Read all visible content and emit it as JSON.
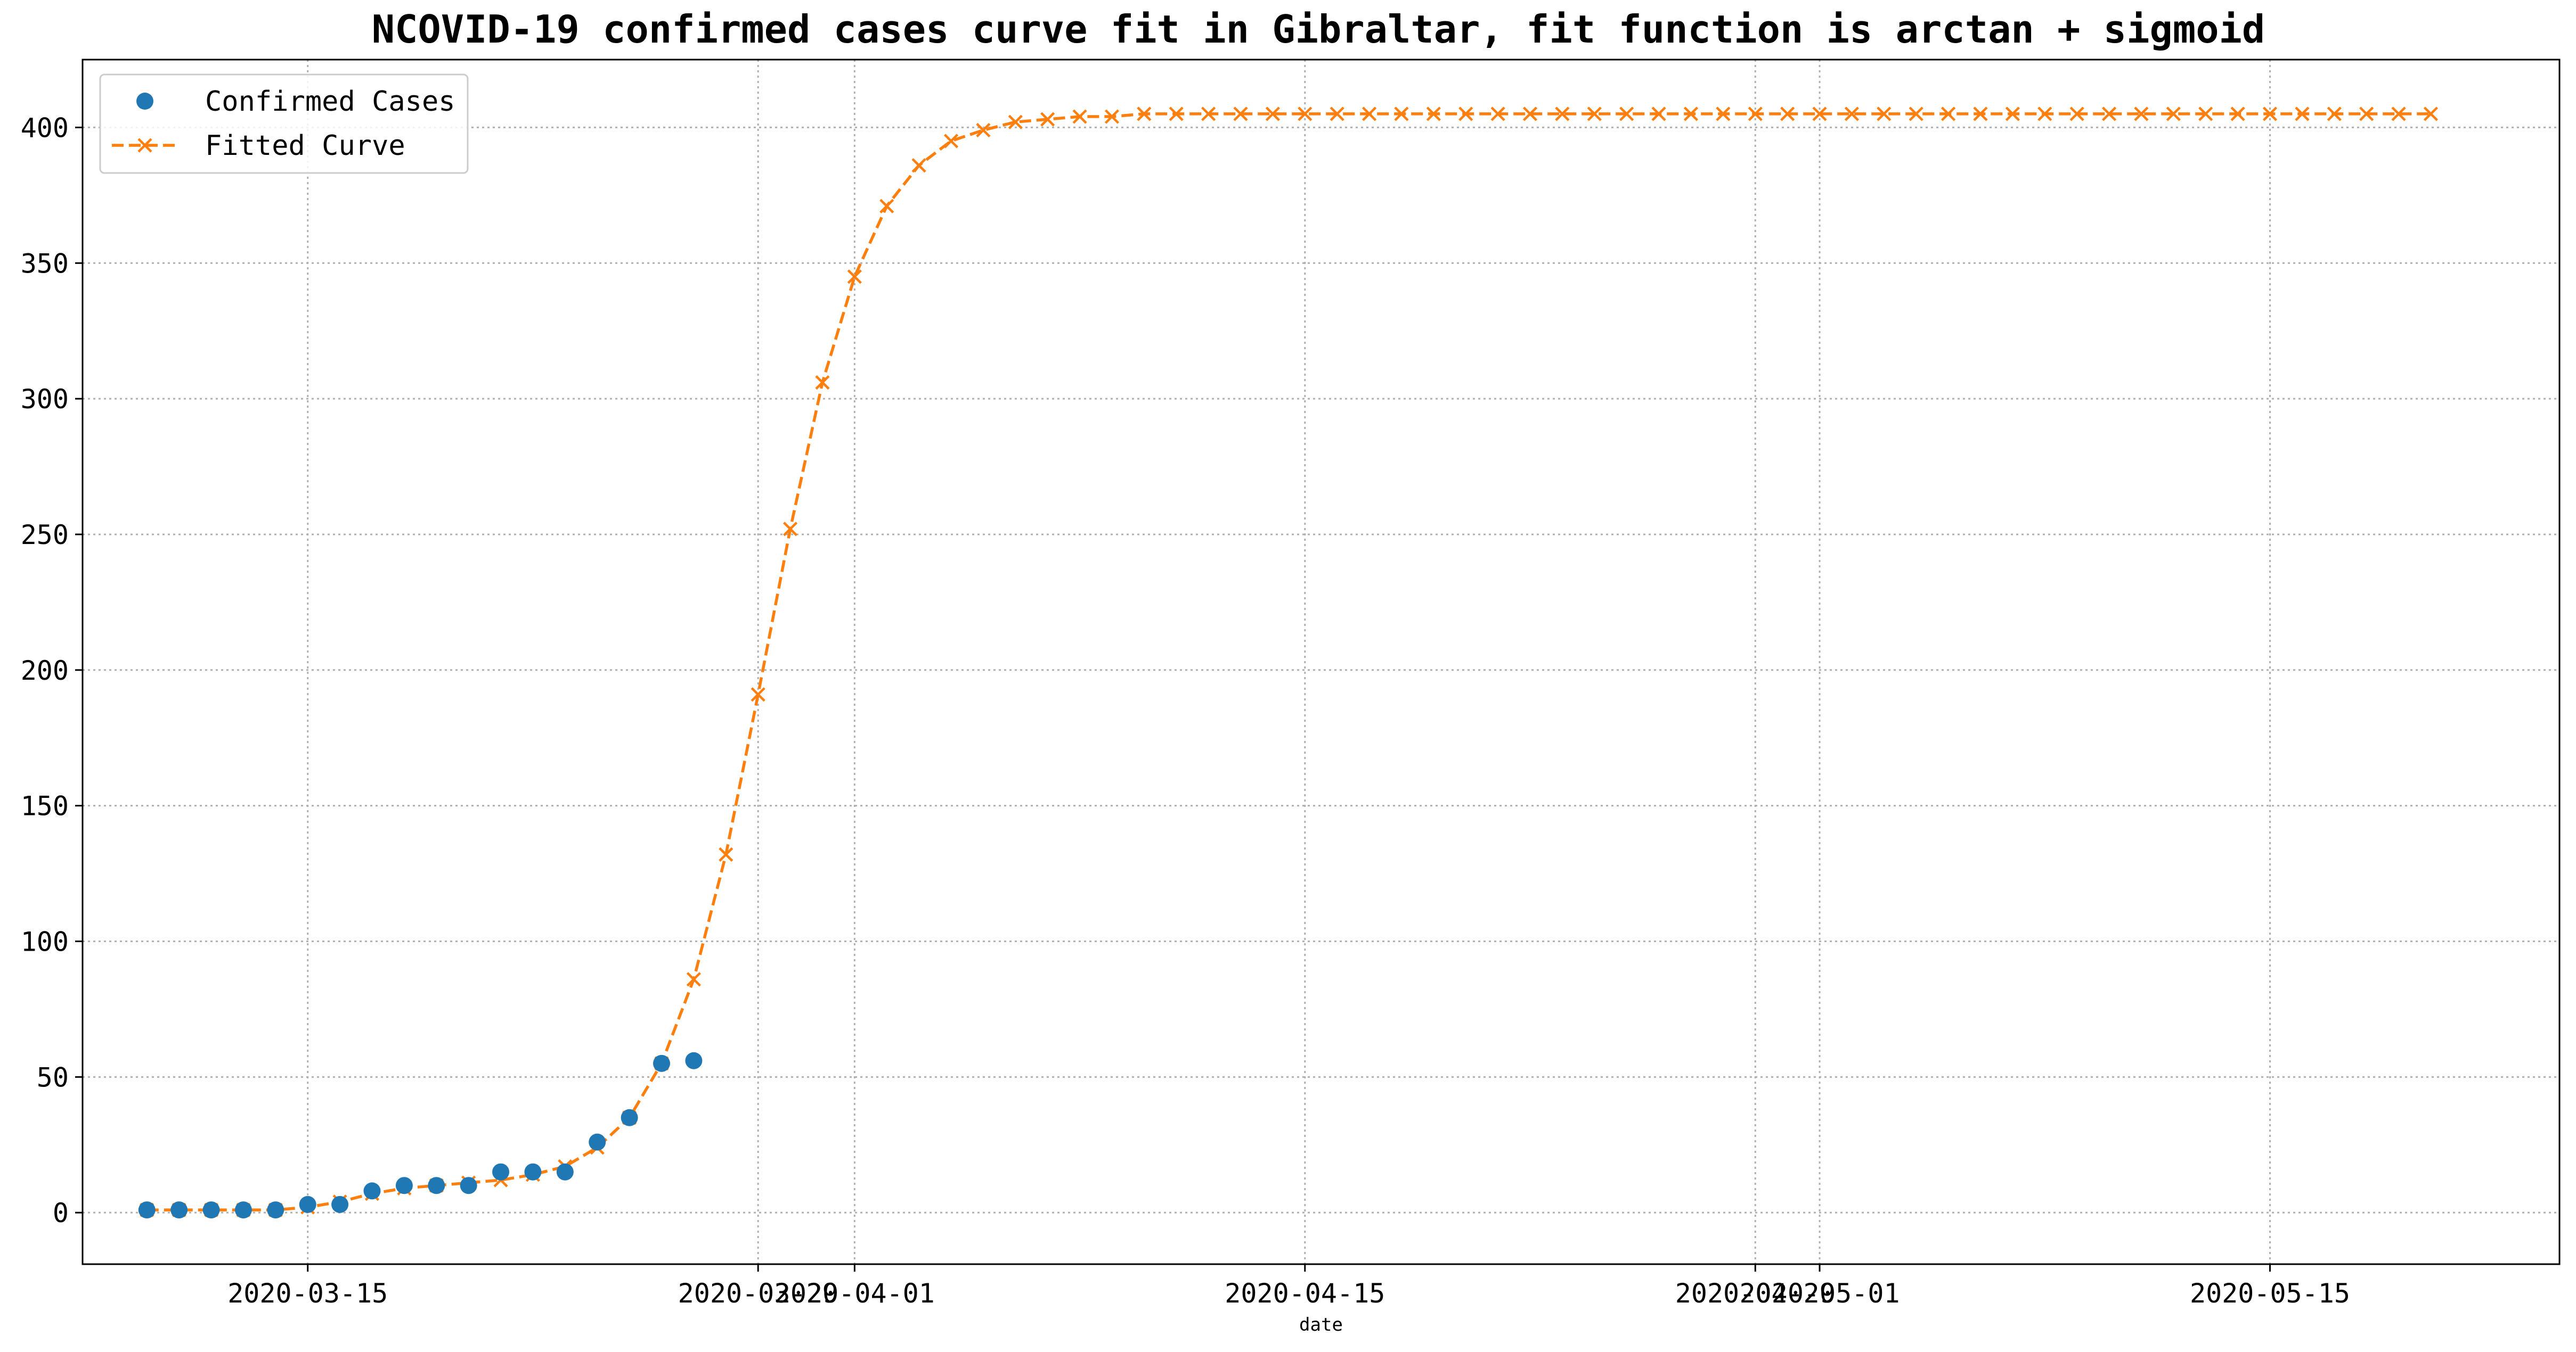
{
  "chart_data": {
    "type": "line",
    "title": "NCOVID-19 confirmed cases curve fit in Gibraltar, fit function is arctan + sigmoid",
    "xlabel": "date",
    "ylabel": "",
    "x_ticks": [
      "2020-03-15",
      "2020-03-29",
      "2020-04-01",
      "2020-04-15",
      "2020-04-29",
      "2020-05-01",
      "2020-05-15"
    ],
    "y_ticks": [
      "0",
      "50",
      "100",
      "150",
      "200",
      "250",
      "300",
      "350",
      "400"
    ],
    "xlim": [
      "2020-03-08",
      "2020-05-24"
    ],
    "ylim": [
      -19,
      425
    ],
    "grid": true,
    "legend_position": "top-left",
    "series": [
      {
        "name": "Confirmed Cases",
        "style": "markers",
        "marker": "circle",
        "color": "#1f77b4",
        "x": [
          "2020-03-10",
          "2020-03-11",
          "2020-03-12",
          "2020-03-13",
          "2020-03-14",
          "2020-03-15",
          "2020-03-16",
          "2020-03-17",
          "2020-03-18",
          "2020-03-19",
          "2020-03-20",
          "2020-03-21",
          "2020-03-22",
          "2020-03-23",
          "2020-03-24",
          "2020-03-25",
          "2020-03-26",
          "2020-03-27",
          "2020-03-28"
        ],
        "values": [
          1,
          1,
          1,
          1,
          1,
          3,
          3,
          8,
          10,
          10,
          10,
          15,
          15,
          15,
          26,
          35,
          55,
          56,
          null
        ]
      },
      {
        "name": "Fitted Curve",
        "style": "dashed-line",
        "marker": "x",
        "color": "#ff7f0e",
        "x": [
          "2020-03-10",
          "2020-03-11",
          "2020-03-12",
          "2020-03-13",
          "2020-03-14",
          "2020-03-15",
          "2020-03-16",
          "2020-03-17",
          "2020-03-18",
          "2020-03-19",
          "2020-03-20",
          "2020-03-21",
          "2020-03-22",
          "2020-03-23",
          "2020-03-24",
          "2020-03-25",
          "2020-03-26",
          "2020-03-27",
          "2020-03-28",
          "2020-03-29",
          "2020-03-30",
          "2020-03-31",
          "2020-04-01",
          "2020-04-02",
          "2020-04-03",
          "2020-04-04",
          "2020-04-05",
          "2020-04-06",
          "2020-04-07",
          "2020-04-08",
          "2020-04-09",
          "2020-04-10",
          "2020-04-11",
          "2020-04-12",
          "2020-04-13",
          "2020-04-14",
          "2020-04-15",
          "2020-04-16",
          "2020-04-17",
          "2020-04-18",
          "2020-04-19",
          "2020-04-20",
          "2020-04-21",
          "2020-04-22",
          "2020-04-23",
          "2020-04-24",
          "2020-04-25",
          "2020-04-26",
          "2020-04-27",
          "2020-04-28",
          "2020-04-29",
          "2020-04-30",
          "2020-05-01",
          "2020-05-02",
          "2020-05-03",
          "2020-05-04",
          "2020-05-05",
          "2020-05-06",
          "2020-05-07",
          "2020-05-08",
          "2020-05-09",
          "2020-05-10",
          "2020-05-11",
          "2020-05-12",
          "2020-05-13",
          "2020-05-14",
          "2020-05-15",
          "2020-05-16",
          "2020-05-17",
          "2020-05-18",
          "2020-05-19",
          "2020-05-20"
        ],
        "values": [
          1,
          1,
          1,
          1,
          1,
          2,
          4,
          7,
          9,
          10,
          11,
          12,
          14,
          17,
          24,
          35,
          55,
          86,
          132,
          191,
          252,
          306,
          345,
          371,
          386,
          395,
          399,
          402,
          403,
          404,
          404,
          405,
          405,
          405,
          405,
          405,
          405,
          405,
          405,
          405,
          405,
          405,
          405,
          405,
          405,
          405,
          405,
          405,
          405,
          405,
          405,
          405,
          405,
          405,
          405,
          405,
          405,
          405,
          405,
          405,
          405,
          405,
          405,
          405,
          405,
          405,
          405,
          405,
          405,
          405,
          405,
          405
        ]
      }
    ]
  }
}
